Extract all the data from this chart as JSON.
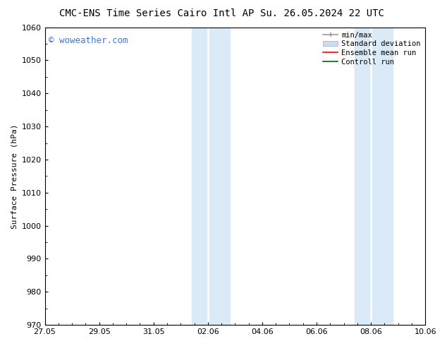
{
  "title_left": "CMC-ENS Time Series Cairo Intl AP",
  "title_right": "Su. 26.05.2024 22 UTC",
  "ylabel": "Surface Pressure (hPa)",
  "ylim": [
    970,
    1060
  ],
  "yticks": [
    970,
    980,
    990,
    1000,
    1010,
    1020,
    1030,
    1040,
    1050,
    1060
  ],
  "xtick_labels": [
    "27.05",
    "29.05",
    "31.05",
    "02.06",
    "04.06",
    "06.06",
    "08.06",
    "10.06"
  ],
  "xtick_positions": [
    0,
    2,
    4,
    6,
    8,
    10,
    12,
    14
  ],
  "xlim": [
    0,
    14
  ],
  "shaded_bands": [
    {
      "x_start": 5.4,
      "x_end": 6.0,
      "color": "#daeaf7"
    },
    {
      "x_start": 6.0,
      "x_end": 6.7,
      "color": "#daeaf7"
    },
    {
      "x_start": 11.4,
      "x_end": 12.0,
      "color": "#daeaf7"
    },
    {
      "x_start": 12.0,
      "x_end": 12.7,
      "color": "#daeaf7"
    }
  ],
  "band_gap_color": "#f0f8ff",
  "watermark": "© woweather.com",
  "watermark_color": "#4477cc",
  "background_color": "#ffffff",
  "plot_bg_color": "#ffffff",
  "legend_labels": [
    "min/max",
    "Standard deviation",
    "Ensemble mean run",
    "Controll run"
  ],
  "legend_colors": [
    "#999999",
    "#c8ddf0",
    "#ff0000",
    "#006600"
  ],
  "title_fontsize": 10,
  "axis_label_fontsize": 8,
  "tick_fontsize": 8,
  "legend_fontsize": 7.5
}
